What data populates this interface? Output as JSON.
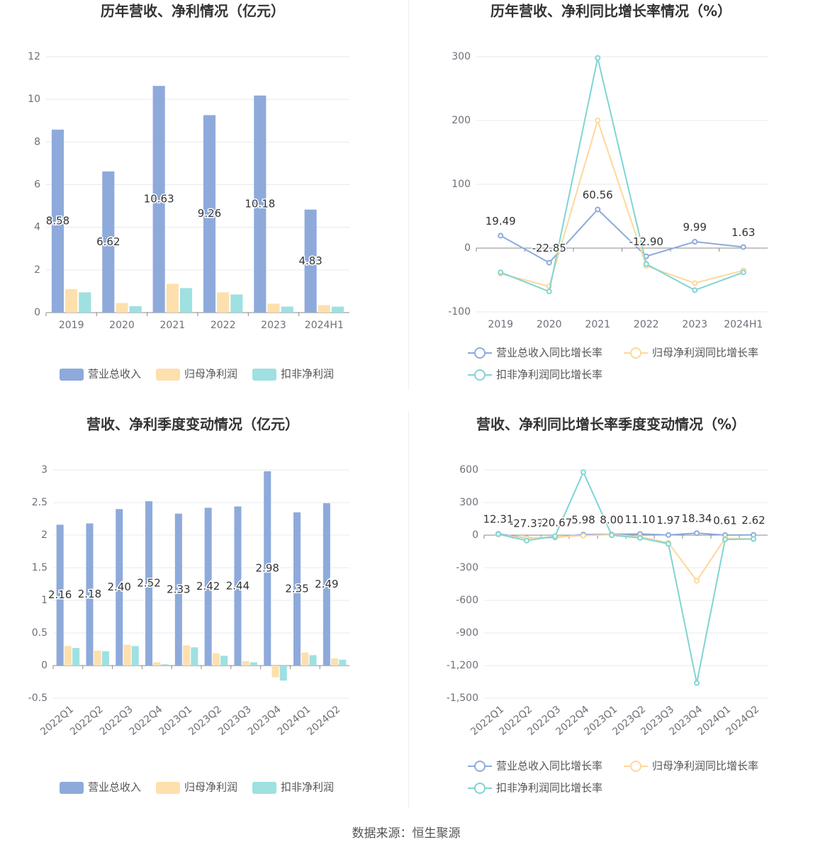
{
  "chart_data": [
    {
      "type": "bar",
      "title": "历年营收、净利情况（亿元）",
      "categories": [
        "2019",
        "2020",
        "2021",
        "2022",
        "2023",
        "2024H1"
      ],
      "series": [
        {
          "name": "营业总收入",
          "color": "#8eaadb",
          "labels": true,
          "values": [
            8.58,
            6.62,
            10.63,
            9.26,
            10.18,
            4.83
          ]
        },
        {
          "name": "归母净利润",
          "color": "#fde0ad",
          "values": [
            1.1,
            0.45,
            1.35,
            0.95,
            0.42,
            0.35
          ]
        },
        {
          "name": "扣非净利润",
          "color": "#9fe0e1",
          "values": [
            0.95,
            0.3,
            1.15,
            0.85,
            0.28,
            0.28
          ]
        }
      ],
      "ylim": [
        0,
        12
      ],
      "yticks": [
        0,
        2,
        4,
        6,
        8,
        10,
        12
      ],
      "grid": true,
      "legend": "bottom"
    },
    {
      "type": "line",
      "title": "历年营收、净利同比增长率情况（%）",
      "categories": [
        "2019",
        "2020",
        "2021",
        "2022",
        "2023",
        "2024H1"
      ],
      "series": [
        {
          "name": "营业总收入同比增长率",
          "color": "#8eaadb",
          "values": [
            19.49,
            -22.85,
            60.56,
            -12.9,
            9.99,
            1.63
          ],
          "value_labels": [
            "19.49",
            "-22.85",
            "60.56",
            "-12.90",
            "9.99",
            "1.63"
          ]
        },
        {
          "name": "归母净利润同比增长率",
          "color": "#fdd89c",
          "values": [
            -40,
            -60,
            200,
            -28,
            -55,
            -35
          ]
        },
        {
          "name": "扣非净利润同比增长率",
          "color": "#80d4d4",
          "values": [
            -38,
            -68,
            298,
            -25,
            -66,
            -38
          ]
        }
      ],
      "ylim": [
        -100,
        300
      ],
      "yticks": [
        -100,
        0,
        100,
        200,
        300
      ],
      "grid": true,
      "legend": "bottom"
    },
    {
      "type": "bar",
      "title": "营收、净利季度变动情况（亿元）",
      "categories": [
        "2022Q1",
        "2022Q2",
        "2022Q3",
        "2022Q4",
        "2023Q1",
        "2023Q2",
        "2023Q3",
        "2023Q4",
        "2024Q1",
        "2024Q2"
      ],
      "x_label_rotation": -40,
      "series": [
        {
          "name": "营业总收入",
          "color": "#8eaadb",
          "values": [
            2.16,
            2.18,
            2.4,
            2.52,
            2.33,
            2.42,
            2.44,
            2.98,
            2.35,
            2.49
          ],
          "value_labels": [
            "2.16",
            "2.18",
            "2.40",
            "2.52",
            "2.33",
            "2.42",
            "2.44",
            "2.98",
            "2.35",
            "2.49"
          ]
        },
        {
          "name": "归母净利润",
          "color": "#fde0ad",
          "values": [
            0.3,
            0.23,
            0.32,
            0.05,
            0.31,
            0.19,
            0.07,
            -0.18,
            0.2,
            0.11
          ]
        },
        {
          "name": "扣非净利润",
          "color": "#9fe0e1",
          "values": [
            0.27,
            0.22,
            0.3,
            0.02,
            0.28,
            0.15,
            0.05,
            -0.23,
            0.16,
            0.09
          ]
        }
      ],
      "ylim": [
        -0.5,
        3
      ],
      "yticks": [
        -0.5,
        0,
        0.5,
        1,
        1.5,
        2,
        2.5,
        3
      ],
      "grid": true,
      "legend": "bottom"
    },
    {
      "type": "line",
      "title": "营收、净利同比增长率季度变动情况（%）",
      "categories": [
        "2022Q1",
        "2022Q2",
        "2022Q3",
        "2022Q4",
        "2023Q1",
        "2023Q2",
        "2023Q3",
        "2023Q4",
        "2024Q1",
        "2024Q2"
      ],
      "x_label_rotation": -40,
      "series": [
        {
          "name": "营业总收入同比增长率",
          "color": "#8eaadb",
          "values": [
            12.31,
            -27.37,
            -20.67,
            5.98,
            8.0,
            11.1,
            1.97,
            18.34,
            0.61,
            2.62
          ],
          "value_labels": [
            "12.31",
            "-27.37",
            "-20.67",
            "5.98",
            "8.00",
            "11.10",
            "1.97",
            "18.34",
            "0.61",
            "2.62"
          ]
        },
        {
          "name": "归母净利润同比增长率",
          "color": "#fdd89c",
          "values": [
            5,
            -30,
            -15,
            -5,
            5,
            -15,
            -70,
            -420,
            -30,
            -35
          ]
        },
        {
          "name": "扣非净利润同比增长率",
          "color": "#80d4d4",
          "values": [
            10,
            -50,
            -10,
            580,
            0,
            -25,
            -80,
            -1360,
            -40,
            -35
          ]
        }
      ],
      "ylim": [
        -1500,
        600
      ],
      "yticks": [
        {
          "value": -1500,
          "label": "-1,500"
        },
        {
          "value": -1200,
          "label": "-1,200"
        },
        -900,
        -600,
        -300,
        0,
        300,
        600
      ],
      "grid": true,
      "legend": "bottom"
    }
  ],
  "source": "数据来源：恒生聚源"
}
